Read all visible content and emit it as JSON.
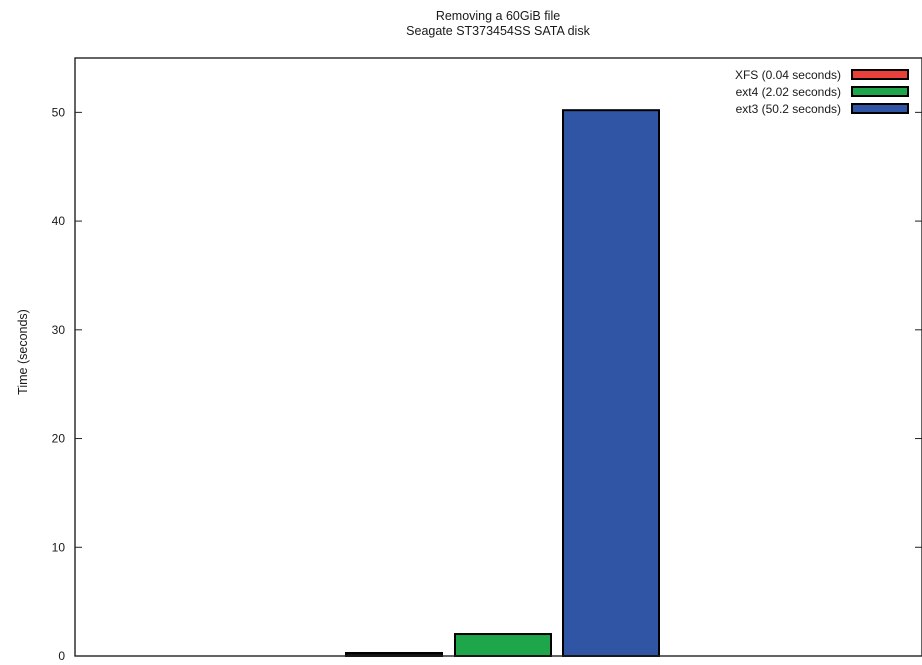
{
  "chart_data": {
    "type": "bar",
    "title": "Removing a 60GiB file",
    "subtitle": "Seagate ST373454SS SATA disk",
    "xlabel": "",
    "ylabel": "Time (seconds)",
    "ylim": [
      0,
      55
    ],
    "yticks": [
      "0",
      "10",
      "20",
      "30",
      "40",
      "50"
    ],
    "grid": false,
    "legend_position": "top-right",
    "series": [
      {
        "name": "XFS (0.04 seconds)",
        "value": 0.04,
        "color": "#e8413a"
      },
      {
        "name": "ext4 (2.02 seconds)",
        "value": 2.02,
        "color": "#1ea64a"
      },
      {
        "name": "ext3 (50.2 seconds)",
        "value": 50.2,
        "color": "#2f55a4"
      }
    ]
  }
}
